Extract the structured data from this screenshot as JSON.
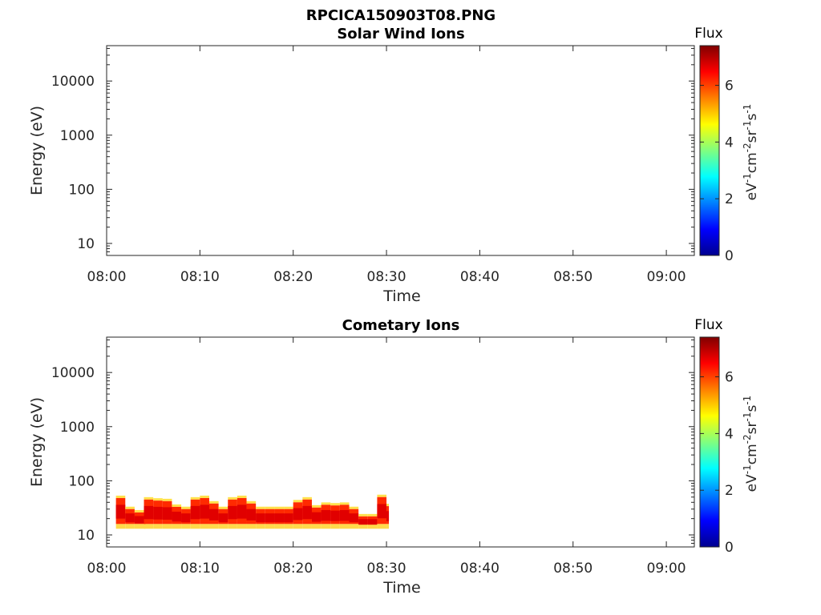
{
  "figure_title": "RPCICA150903T08.PNG",
  "colors": {
    "colormap": "jet",
    "colormap_stops": [
      "#00008f",
      "#0000ff",
      "#00ffff",
      "#ffff00",
      "#ff0000",
      "#800000"
    ]
  },
  "chart_data": [
    {
      "type": "heatmap",
      "title": "Solar Wind Ions",
      "xlabel": "Time",
      "ylabel": "Energy (eV)",
      "yscale": "log",
      "ylim": [
        6,
        45000
      ],
      "xlim": [
        "08:00",
        "09:03"
      ],
      "x_tick_labels": [
        "08:00",
        "08:10",
        "08:20",
        "08:30",
        "08:40",
        "08:50",
        "09:00"
      ],
      "y_tick_labels": [
        "10",
        "100",
        "1000",
        "10000"
      ],
      "colorbar": {
        "title": "Flux",
        "label": "eV-1cm-2sr-1s-1",
        "range": [
          0,
          7.4
        ],
        "tick_labels": [
          "0",
          "2",
          "4",
          "6"
        ]
      },
      "data": []
    },
    {
      "type": "heatmap",
      "title": "Cometary Ions",
      "xlabel": "Time",
      "ylabel": "Energy (eV)",
      "yscale": "log",
      "ylim": [
        6,
        45000
      ],
      "xlim": [
        "08:00",
        "09:03"
      ],
      "x_tick_labels": [
        "08:00",
        "08:10",
        "08:20",
        "08:30",
        "08:40",
        "08:50",
        "09:00"
      ],
      "y_tick_labels": [
        "10",
        "100",
        "1000",
        "10000"
      ],
      "colorbar": {
        "title": "Flux",
        "label": "eV-1cm-2sr-1s-1",
        "range": [
          0,
          7.4
        ],
        "tick_labels": [
          "0",
          "2",
          "4",
          "6"
        ]
      },
      "data_points_label": "upper energy edge of ion band vs time",
      "band_lower_edge_eV": 13,
      "band_upper_edge": [
        [
          "08:01",
          48
        ],
        [
          "08:02",
          30
        ],
        [
          "08:03",
          26
        ],
        [
          "08:04",
          24
        ],
        [
          "08:04",
          45
        ],
        [
          "08:05",
          43
        ],
        [
          "08:06",
          42
        ],
        [
          "08:07",
          33
        ],
        [
          "08:08",
          30
        ],
        [
          "08:09",
          45
        ],
        [
          "08:10",
          48
        ],
        [
          "08:11",
          38
        ],
        [
          "08:12",
          30
        ],
        [
          "08:13",
          45
        ],
        [
          "08:14",
          48
        ],
        [
          "08:15",
          38
        ],
        [
          "08:16",
          30
        ],
        [
          "08:17",
          30
        ],
        [
          "08:18",
          30
        ],
        [
          "08:19",
          30
        ],
        [
          "08:20",
          40
        ],
        [
          "08:21",
          45
        ],
        [
          "08:22",
          32
        ],
        [
          "08:23",
          36
        ],
        [
          "08:24",
          35
        ],
        [
          "08:25",
          36
        ],
        [
          "08:26",
          30
        ],
        [
          "08:27",
          22
        ],
        [
          "08:28",
          22
        ],
        [
          "08:29",
          50
        ],
        [
          "08:30",
          34
        ]
      ]
    }
  ]
}
